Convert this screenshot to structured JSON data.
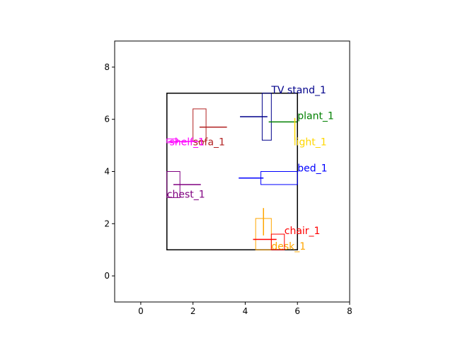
{
  "chart_data": {
    "type": "scatter",
    "title": "",
    "xlabel": "",
    "ylabel": "",
    "xlim": [
      -1,
      8
    ],
    "ylim": [
      -1,
      9
    ],
    "x_ticks": [
      "0",
      "2",
      "4",
      "6",
      "8"
    ],
    "y_ticks": [
      "0",
      "2",
      "4",
      "6",
      "8"
    ],
    "grid": false,
    "room": {
      "x0": 1,
      "y0": 1,
      "x1": 6,
      "y1": 7,
      "color": "#000000"
    },
    "objects": [
      {
        "label": "TV stand_1",
        "color": "#00008b",
        "rect": [
          4.65,
          5.2,
          5.0,
          7.0
        ],
        "line": [
          3.8,
          6.1,
          4.85,
          6.1
        ],
        "label_at": [
          5.0,
          7.0
        ]
      },
      {
        "label": "plant_1",
        "color": "#008000",
        "rect": null,
        "line": [
          4.9,
          5.9,
          6.0,
          5.9
        ],
        "label_at": [
          6.0,
          6.0
        ]
      },
      {
        "label": "light_1",
        "color": "#ffd700",
        "rect": null,
        "line": [
          5.9,
          5.2,
          5.9,
          6.05
        ],
        "label_at": [
          5.85,
          5.0
        ]
      },
      {
        "label": "bed_1",
        "color": "#0000ff",
        "rect": [
          4.6,
          3.5,
          6.0,
          4.0
        ],
        "line": [
          3.75,
          3.75,
          4.7,
          3.75
        ],
        "label_at": [
          6.0,
          4.0
        ]
      },
      {
        "label": "sofa_1",
        "color": "#b22222",
        "rect": [
          2.0,
          5.15,
          2.5,
          6.4
        ],
        "line": [
          2.25,
          5.7,
          3.3,
          5.7
        ],
        "label_at": [
          2.0,
          5.0
        ]
      },
      {
        "label": "shelf_1",
        "color": "#ff00ff",
        "rect": [
          1.0,
          5.1,
          1.4,
          5.25
        ],
        "line": [
          1.05,
          5.15,
          2.2,
          5.15
        ],
        "label_at": [
          1.1,
          5.0
        ]
      },
      {
        "label": "chest_1",
        "color": "#800080",
        "rect": [
          1.0,
          3.0,
          1.5,
          4.0
        ],
        "line": [
          1.25,
          3.5,
          2.3,
          3.5
        ],
        "label_at": [
          1.0,
          3.0
        ]
      },
      {
        "label": "desk_1",
        "color": "#ffa500",
        "rect": [
          4.4,
          1.0,
          5.0,
          2.2
        ],
        "line": [
          4.7,
          1.55,
          4.7,
          2.6
        ],
        "label_at": [
          5.0,
          1.0
        ]
      },
      {
        "label": "chair_1",
        "color": "#ff0000",
        "rect": [
          5.0,
          1.0,
          5.5,
          1.6
        ],
        "line": [
          4.3,
          1.4,
          5.2,
          1.4
        ],
        "label_at": [
          5.5,
          1.6
        ]
      }
    ]
  }
}
